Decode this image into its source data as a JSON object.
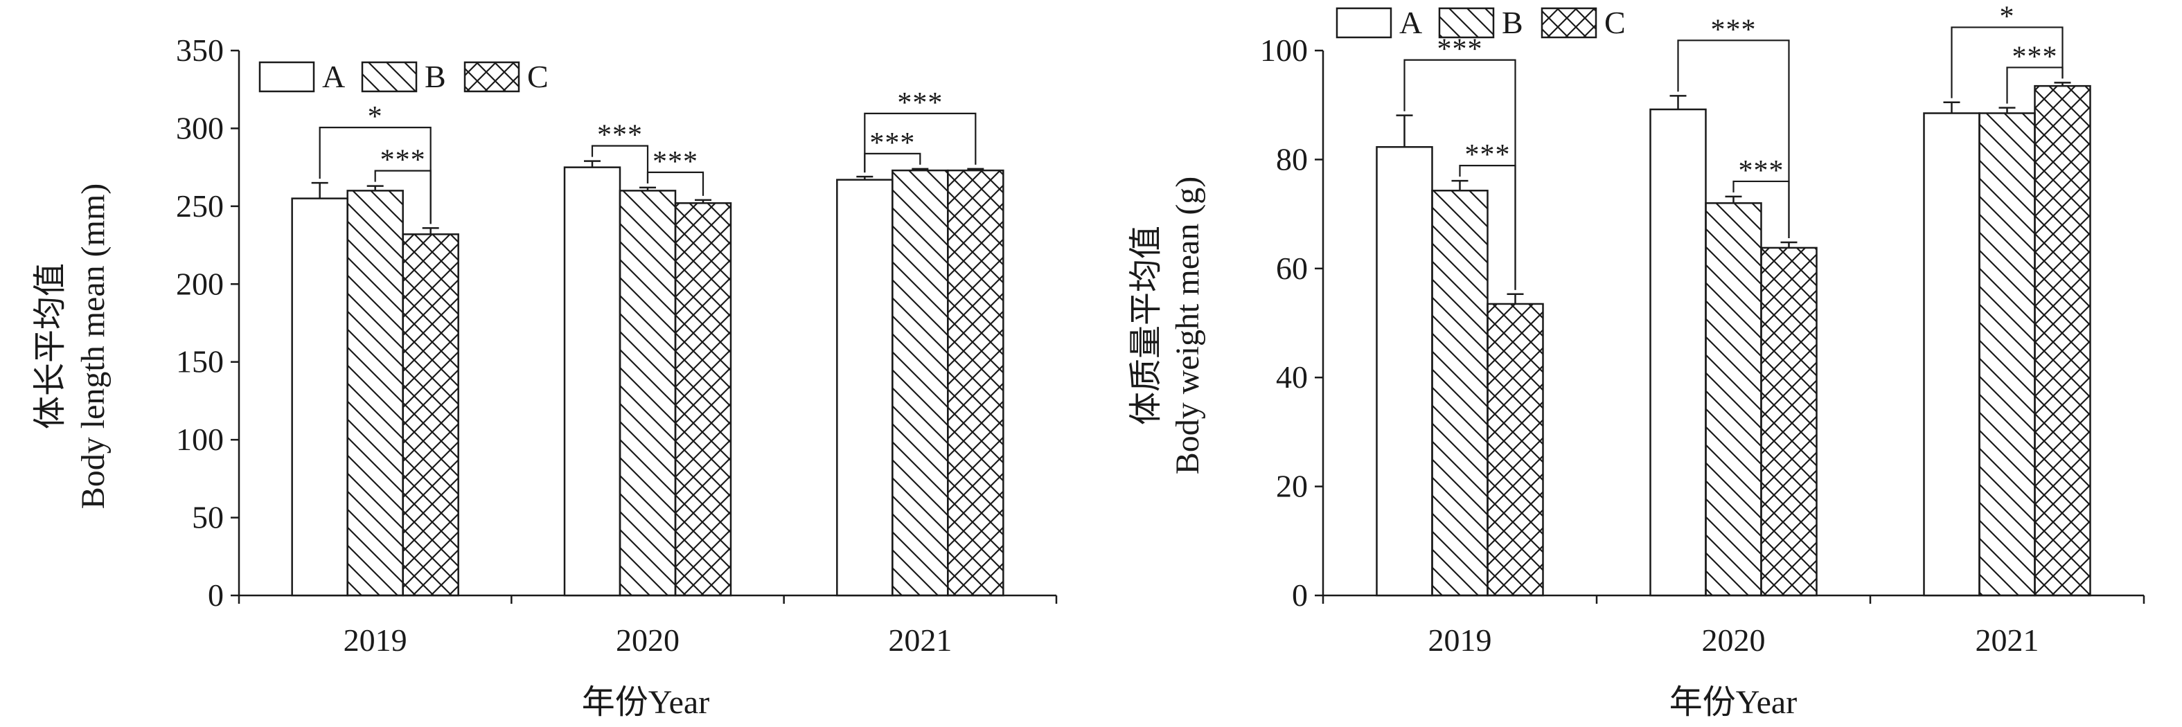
{
  "chart_data": [
    {
      "type": "bar",
      "categories": [
        "2019",
        "2020",
        "2021"
      ],
      "series": [
        {
          "name": "A",
          "values": [
            255,
            275,
            267
          ],
          "errors": [
            10,
            4,
            2
          ],
          "pattern": "none"
        },
        {
          "name": "B",
          "values": [
            260,
            260,
            273
          ],
          "errors": [
            3,
            2,
            1
          ],
          "pattern": "diagonal"
        },
        {
          "name": "C",
          "values": [
            232,
            252,
            273
          ],
          "errors": [
            4,
            2,
            1
          ],
          "pattern": "crosshatch"
        }
      ],
      "ylabel_cn": "体长平均值",
      "ylabel": "Body length mean (mm)",
      "xlabel": "年份Year",
      "ylim": [
        0,
        350
      ],
      "yticks": [
        0,
        50,
        100,
        150,
        200,
        250,
        300,
        350
      ],
      "legend_position": "top-left",
      "significance": [
        {
          "category": 0,
          "from": 0,
          "to": 2,
          "label": "*",
          "level": 2
        },
        {
          "category": 0,
          "from": 1,
          "to": 2,
          "label": "***",
          "level": 1
        },
        {
          "category": 1,
          "from": 0,
          "to": 1,
          "label": "***",
          "level": 1
        },
        {
          "category": 1,
          "from": 1,
          "to": 2,
          "label": "***",
          "level": 1
        },
        {
          "category": 2,
          "from": 0,
          "to": 2,
          "label": "***",
          "level": 2
        },
        {
          "category": 2,
          "from": 0,
          "to": 1,
          "label": "***",
          "level": 1
        }
      ]
    },
    {
      "type": "bar",
      "categories": [
        "2019",
        "2020",
        "2021"
      ],
      "series": [
        {
          "name": "A",
          "values": [
            82.3,
            89.2,
            88.5
          ],
          "errors": [
            5.8,
            2.5,
            2.0
          ],
          "pattern": "none"
        },
        {
          "name": "B",
          "values": [
            74.3,
            72.0,
            88.5
          ],
          "errors": [
            1.8,
            1.2,
            1.0
          ],
          "pattern": "diagonal"
        },
        {
          "name": "C",
          "values": [
            53.5,
            63.8,
            93.5
          ],
          "errors": [
            1.8,
            1.0,
            0.6
          ],
          "pattern": "crosshatch"
        }
      ],
      "ylabel_cn": "体质量平均值",
      "ylabel": "Body weight mean (g)",
      "xlabel": "年份Year",
      "ylim": [
        0,
        100
      ],
      "yticks": [
        0,
        20,
        40,
        60,
        80,
        100
      ],
      "legend_position": "top-left",
      "significance": [
        {
          "category": 0,
          "from": 0,
          "to": 2,
          "label": "***",
          "level": 2
        },
        {
          "category": 0,
          "from": 1,
          "to": 2,
          "label": "***",
          "level": 1
        },
        {
          "category": 1,
          "from": 0,
          "to": 2,
          "label": "***",
          "level": 2
        },
        {
          "category": 1,
          "from": 1,
          "to": 2,
          "label": "***",
          "level": 1
        },
        {
          "category": 2,
          "from": 0,
          "to": 2,
          "label": "*",
          "level": 2
        },
        {
          "category": 2,
          "from": 1,
          "to": 2,
          "label": "***",
          "level": 1
        }
      ]
    }
  ]
}
